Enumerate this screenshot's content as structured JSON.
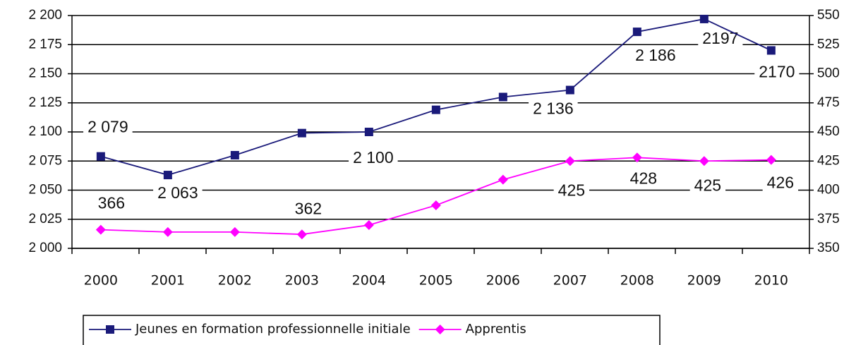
{
  "chart_data": {
    "type": "line",
    "categories": [
      "2000",
      "2001",
      "2002",
      "2003",
      "2004",
      "2005",
      "2006",
      "2007",
      "2008",
      "2009",
      "2010"
    ],
    "series": [
      {
        "name": "Jeunes en formation professionnelle initiale",
        "color": "#1a1a7a",
        "values": [
          2079,
          2063,
          2080,
          2099,
          2100,
          2119,
          2130,
          2136,
          2186,
          2197,
          2170
        ],
        "value_labels": [
          "2 079",
          "2 063",
          null,
          null,
          "2 100",
          null,
          null,
          "2 136",
          "2 186",
          "2197",
          "2170"
        ]
      },
      {
        "name": "Apprentis",
        "color": "#ff00ff",
        "axis": "y2",
        "values": [
          366,
          364,
          364,
          362,
          370,
          387,
          409,
          425,
          428,
          425,
          426
        ],
        "value_labels": [
          "366",
          null,
          null,
          "362",
          null,
          null,
          null,
          "425",
          "428",
          "425",
          "426"
        ]
      }
    ],
    "ylim": [
      2000,
      2200
    ],
    "yticks": [
      {
        "value": 2000,
        "label": "2 000"
      },
      {
        "value": 2025,
        "label": "2 025"
      },
      {
        "value": 2050,
        "label": "2 050"
      },
      {
        "value": 2075,
        "label": "2 075"
      },
      {
        "value": 2100,
        "label": "2 100"
      },
      {
        "value": 2125,
        "label": "2 125"
      },
      {
        "value": 2150,
        "label": "2 150"
      },
      {
        "value": 2175,
        "label": "2 175"
      },
      {
        "value": 2200,
        "label": "2 200"
      }
    ],
    "y2lim": [
      350,
      550
    ],
    "y2ticks": [
      350,
      375,
      400,
      425,
      450,
      475,
      500,
      525,
      550
    ],
    "grid": true
  }
}
